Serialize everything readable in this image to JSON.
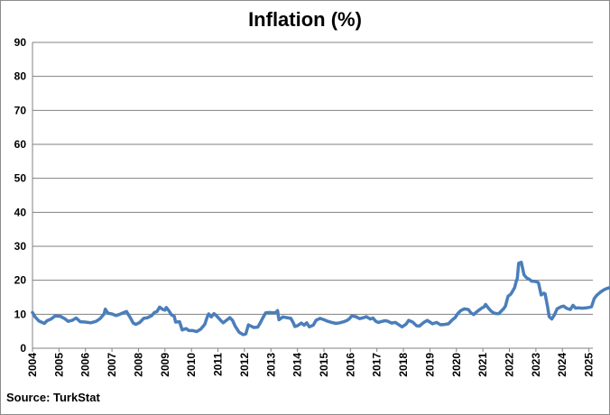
{
  "chart_data": {
    "type": "line",
    "title": "Inflation (%)",
    "xlabel": "",
    "ylabel": "",
    "source": "Source: TurkStat",
    "ylim": [
      0,
      90
    ],
    "yticks": [
      0,
      10,
      20,
      30,
      40,
      50,
      60,
      70,
      80,
      90
    ],
    "xlim": [
      2004,
      2025.15
    ],
    "xticks": [
      "2004",
      "2005",
      "2006",
      "2007",
      "2008",
      "2009",
      "2010",
      "2011",
      "2012",
      "2013",
      "2014",
      "2015",
      "2016",
      "2017",
      "2018",
      "2019",
      "2020",
      "2021",
      "2022",
      "2023",
      "2024",
      "2025"
    ],
    "grid": "horizontal",
    "line_color": "#4a7ebb",
    "series": [
      {
        "name": "",
        "points": [
          [
            2004.0,
            10.5
          ],
          [
            2004.1,
            9.2
          ],
          [
            2004.25,
            8.0
          ],
          [
            2004.45,
            7.3
          ],
          [
            2004.55,
            8.1
          ],
          [
            2004.7,
            8.6
          ],
          [
            2004.85,
            9.5
          ],
          [
            2005.05,
            9.4
          ],
          [
            2005.2,
            8.8
          ],
          [
            2005.35,
            7.9
          ],
          [
            2005.5,
            8.2
          ],
          [
            2005.65,
            8.9
          ],
          [
            2005.8,
            7.8
          ],
          [
            2006.0,
            7.7
          ],
          [
            2006.2,
            7.5
          ],
          [
            2006.4,
            7.9
          ],
          [
            2006.55,
            8.7
          ],
          [
            2006.7,
            10.1
          ],
          [
            2006.75,
            11.5
          ],
          [
            2006.85,
            10.3
          ],
          [
            2007.0,
            10.1
          ],
          [
            2007.15,
            9.6
          ],
          [
            2007.3,
            10.0
          ],
          [
            2007.45,
            10.5
          ],
          [
            2007.55,
            10.8
          ],
          [
            2007.7,
            8.9
          ],
          [
            2007.8,
            7.4
          ],
          [
            2007.9,
            7.0
          ],
          [
            2008.05,
            7.6
          ],
          [
            2008.2,
            8.8
          ],
          [
            2008.35,
            9.0
          ],
          [
            2008.5,
            9.6
          ],
          [
            2008.6,
            10.5
          ],
          [
            2008.7,
            10.8
          ],
          [
            2008.8,
            12.1
          ],
          [
            2008.9,
            11.5
          ],
          [
            2009.0,
            11.2
          ],
          [
            2009.05,
            12.0
          ],
          [
            2009.15,
            11.0
          ],
          [
            2009.25,
            9.8
          ],
          [
            2009.35,
            9.4
          ],
          [
            2009.4,
            7.7
          ],
          [
            2009.55,
            7.8
          ],
          [
            2009.65,
            5.4
          ],
          [
            2009.8,
            5.8
          ],
          [
            2009.9,
            5.2
          ],
          [
            2010.05,
            5.2
          ],
          [
            2010.2,
            4.9
          ],
          [
            2010.35,
            5.6
          ],
          [
            2010.5,
            7.0
          ],
          [
            2010.6,
            9.3
          ],
          [
            2010.65,
            10.1
          ],
          [
            2010.75,
            9.2
          ],
          [
            2010.85,
            10.2
          ],
          [
            2010.95,
            9.5
          ],
          [
            2011.1,
            8.2
          ],
          [
            2011.2,
            7.5
          ],
          [
            2011.35,
            8.4
          ],
          [
            2011.45,
            9.0
          ],
          [
            2011.55,
            8.2
          ],
          [
            2011.65,
            6.5
          ],
          [
            2011.8,
            4.7
          ],
          [
            2011.95,
            4.0
          ],
          [
            2012.05,
            4.2
          ],
          [
            2012.15,
            6.9
          ],
          [
            2012.25,
            6.5
          ],
          [
            2012.35,
            6.1
          ],
          [
            2012.5,
            6.2
          ],
          [
            2012.6,
            7.5
          ],
          [
            2012.7,
            9.0
          ],
          [
            2012.8,
            10.4
          ],
          [
            2012.95,
            10.5
          ],
          [
            2013.1,
            10.4
          ],
          [
            2013.2,
            10.6
          ],
          [
            2013.25,
            11.1
          ],
          [
            2013.3,
            8.4
          ],
          [
            2013.45,
            9.2
          ],
          [
            2013.6,
            9.0
          ],
          [
            2013.75,
            8.8
          ],
          [
            2013.85,
            7.4
          ],
          [
            2013.9,
            6.4
          ],
          [
            2014.0,
            6.6
          ],
          [
            2014.15,
            7.4
          ],
          [
            2014.25,
            6.8
          ],
          [
            2014.35,
            7.5
          ],
          [
            2014.45,
            6.3
          ],
          [
            2014.6,
            6.8
          ],
          [
            2014.7,
            8.2
          ],
          [
            2014.85,
            8.8
          ],
          [
            2015.0,
            8.4
          ],
          [
            2015.15,
            7.9
          ],
          [
            2015.3,
            7.6
          ],
          [
            2015.45,
            7.3
          ],
          [
            2015.6,
            7.5
          ],
          [
            2015.75,
            7.8
          ],
          [
            2015.85,
            8.1
          ],
          [
            2015.95,
            8.6
          ],
          [
            2016.05,
            9.5
          ],
          [
            2016.2,
            9.3
          ],
          [
            2016.35,
            8.7
          ],
          [
            2016.5,
            9.0
          ],
          [
            2016.6,
            9.3
          ],
          [
            2016.75,
            8.6
          ],
          [
            2016.85,
            8.9
          ],
          [
            2016.95,
            8.0
          ],
          [
            2017.05,
            7.6
          ],
          [
            2017.15,
            7.8
          ],
          [
            2017.3,
            8.1
          ],
          [
            2017.4,
            8.0
          ],
          [
            2017.55,
            7.4
          ],
          [
            2017.7,
            7.6
          ],
          [
            2017.85,
            6.8
          ],
          [
            2017.95,
            6.3
          ],
          [
            2018.1,
            7.1
          ],
          [
            2018.2,
            8.2
          ],
          [
            2018.35,
            7.7
          ],
          [
            2018.5,
            6.6
          ],
          [
            2018.6,
            6.5
          ],
          [
            2018.75,
            7.5
          ],
          [
            2018.9,
            8.2
          ],
          [
            2019.0,
            7.7
          ],
          [
            2019.1,
            7.2
          ],
          [
            2019.25,
            7.6
          ],
          [
            2019.4,
            6.9
          ],
          [
            2019.55,
            7.0
          ],
          [
            2019.7,
            7.2
          ],
          [
            2019.85,
            8.4
          ],
          [
            2019.95,
            9.0
          ],
          [
            2020.05,
            10.2
          ],
          [
            2020.15,
            11.0
          ],
          [
            2020.3,
            11.6
          ],
          [
            2020.45,
            11.4
          ],
          [
            2020.55,
            10.4
          ],
          [
            2020.65,
            9.9
          ],
          [
            2020.75,
            10.6
          ],
          [
            2020.85,
            11.2
          ],
          [
            2020.95,
            11.8
          ],
          [
            2021.05,
            12.2
          ],
          [
            2021.1,
            12.9
          ],
          [
            2021.2,
            11.9
          ],
          [
            2021.3,
            11.0
          ],
          [
            2021.4,
            10.4
          ],
          [
            2021.5,
            10.2
          ],
          [
            2021.6,
            10.2
          ],
          [
            2021.7,
            11.0
          ],
          [
            2021.8,
            11.8
          ],
          [
            2021.85,
            12.4
          ],
          [
            2021.95,
            15.3
          ],
          [
            2022.05,
            15.9
          ],
          [
            2022.1,
            16.5
          ],
          [
            2022.2,
            17.9
          ],
          [
            2022.25,
            19.5
          ],
          [
            2022.3,
            20.6
          ],
          [
            2022.35,
            25.0
          ],
          [
            2022.45,
            25.3
          ],
          [
            2022.55,
            21.6
          ],
          [
            2022.65,
            20.7
          ],
          [
            2022.75,
            20.3
          ],
          [
            2022.85,
            19.7
          ],
          [
            2022.95,
            19.7
          ],
          [
            2023.05,
            19.5
          ],
          [
            2023.1,
            19.2
          ],
          [
            2023.2,
            15.7
          ],
          [
            2023.3,
            16.2
          ],
          [
            2023.35,
            16.0
          ],
          [
            2023.45,
            11.8
          ],
          [
            2023.5,
            9.3
          ],
          [
            2023.6,
            8.6
          ],
          [
            2023.7,
            9.8
          ],
          [
            2023.8,
            11.6
          ],
          [
            2023.95,
            12.2
          ],
          [
            2024.05,
            12.4
          ],
          [
            2024.15,
            11.8
          ],
          [
            2024.3,
            11.4
          ],
          [
            2024.4,
            12.6
          ],
          [
            2024.5,
            11.8
          ],
          [
            2024.6,
            11.9
          ],
          [
            2024.75,
            11.8
          ],
          [
            2024.9,
            11.9
          ],
          [
            2025.0,
            12.0
          ],
          [
            2025.1,
            12.2
          ],
          [
            2025.2,
            14.6
          ],
          [
            2025.3,
            15.6
          ],
          [
            2025.45,
            16.6
          ],
          [
            2025.55,
            17.1
          ],
          [
            2025.65,
            17.5
          ],
          [
            2025.75,
            17.8
          ],
          [
            2025.85,
            17.5
          ],
          [
            2025.95,
            19.0
          ]
        ]
      }
    ]
  }
}
